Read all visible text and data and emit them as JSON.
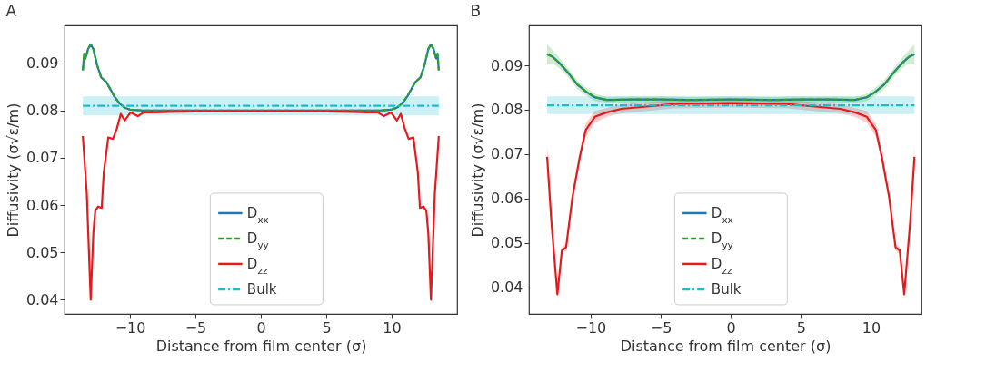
{
  "chart_data": [
    {
      "type": "line",
      "title": "A",
      "xlabel": "Distance from film center (σ)",
      "ylabel": "Diffusivity (σ√ε/m)",
      "xlim": [
        -15,
        15
      ],
      "ylim": [
        0.037,
        0.098
      ],
      "xticks": [
        -10,
        -5,
        0,
        5,
        10
      ],
      "yticks": [
        0.04,
        0.05,
        0.06,
        0.07,
        0.08,
        0.09
      ],
      "grid": false,
      "legend": "bottom",
      "line_style": "solid",
      "series": [
        {
          "name": "D$_{xx}$",
          "color": "#1f77b4",
          "x": [
            -13.6,
            -13.5,
            -13.4,
            -13.2,
            -13.0,
            -12.8,
            -12.5,
            -12.2,
            -11.8,
            -11.5,
            -11.2,
            -10.8,
            -10.4,
            -10,
            -9,
            -7,
            -5,
            -3,
            0,
            3,
            5,
            7,
            9,
            10,
            10.4,
            10.8,
            11.2,
            11.5,
            11.8,
            12.2,
            12.5,
            12.8,
            13.0,
            13.2,
            13.4,
            13.5,
            13.6
          ],
          "values": [
            0.0885,
            0.092,
            0.091,
            0.093,
            0.094,
            0.093,
            0.0895,
            0.087,
            0.086,
            0.0845,
            0.083,
            0.0815,
            0.0806,
            0.0802,
            0.08,
            0.08,
            0.08,
            0.08,
            0.08,
            0.08,
            0.08,
            0.08,
            0.08,
            0.0802,
            0.0806,
            0.0815,
            0.083,
            0.0845,
            0.086,
            0.087,
            0.0895,
            0.093,
            0.094,
            0.093,
            0.091,
            0.092,
            0.0885
          ]
        },
        {
          "name": "D$_{yy}$",
          "color": "#2ca02c",
          "line_style": "dashed",
          "x": [
            -13.6,
            -13.5,
            -13.4,
            -13.2,
            -13.0,
            -12.8,
            -12.5,
            -12.2,
            -11.8,
            -11.5,
            -11.2,
            -10.8,
            -10.4,
            -10,
            -9,
            -7,
            -5,
            -3,
            0,
            3,
            5,
            7,
            9,
            10,
            10.4,
            10.8,
            11.2,
            11.5,
            11.8,
            12.2,
            12.5,
            12.8,
            13.0,
            13.2,
            13.4,
            13.5,
            13.6
          ],
          "values": [
            0.0885,
            0.092,
            0.091,
            0.093,
            0.094,
            0.093,
            0.0895,
            0.087,
            0.086,
            0.0845,
            0.083,
            0.0815,
            0.0806,
            0.0802,
            0.08,
            0.08,
            0.08,
            0.08,
            0.08,
            0.08,
            0.08,
            0.08,
            0.08,
            0.0802,
            0.0806,
            0.0815,
            0.083,
            0.0845,
            0.086,
            0.087,
            0.0895,
            0.093,
            0.094,
            0.093,
            0.091,
            0.092,
            0.0885
          ]
        },
        {
          "name": "D$_{zz}$",
          "color": "#e8191c",
          "x": [
            -13.6,
            -13.3,
            -13.0,
            -12.8,
            -12.65,
            -12.43,
            -12.16,
            -12.0,
            -11.66,
            -11.3,
            -11.0,
            -10.7,
            -10.4,
            -9.95,
            -9.4,
            -8.94,
            -8.05,
            -7,
            -5,
            0,
            5,
            7,
            8.05,
            8.94,
            9.4,
            9.95,
            10.4,
            10.7,
            11.0,
            11.3,
            11.66,
            12.0,
            12.16,
            12.43,
            12.65,
            12.8,
            13.0,
            13.3,
            13.6
          ],
          "values": [
            0.0746,
            0.0625,
            0.04,
            0.054,
            0.0588,
            0.0597,
            0.0594,
            0.0669,
            0.0743,
            0.074,
            0.0762,
            0.0793,
            0.0779,
            0.0796,
            0.0788,
            0.0796,
            0.0796,
            0.0797,
            0.0798,
            0.0798,
            0.0798,
            0.0797,
            0.0796,
            0.0796,
            0.0788,
            0.0796,
            0.0779,
            0.0793,
            0.0762,
            0.074,
            0.0743,
            0.0669,
            0.0594,
            0.0597,
            0.0588,
            0.054,
            0.04,
            0.0625,
            0.0746
          ]
        },
        {
          "name": "Bulk",
          "color": "#17becf",
          "line_style": "dashdot",
          "x": [
            -13.6,
            13.6
          ],
          "values": [
            0.081,
            0.081
          ],
          "lower": [
            0.079,
            0.079
          ],
          "upper": [
            0.083,
            0.083
          ]
        }
      ]
    },
    {
      "type": "line",
      "title": "B",
      "xlabel": "Distance from film center (σ)",
      "ylabel": "Diffusivity (σ√ε/m)",
      "xlim": [
        -14.4,
        13.6
      ],
      "ylim": [
        0.034,
        0.099
      ],
      "xticks": [
        -10,
        -5,
        0,
        5,
        10
      ],
      "yticks": [
        0.04,
        0.05,
        0.06,
        0.07,
        0.08,
        0.09
      ],
      "grid": false,
      "legend": "bottom",
      "line_style": "solid",
      "series": [
        {
          "name": "D$_{xx}$",
          "color": "#1f77b4",
          "x": [
            -13.1,
            -12.7,
            -12.25,
            -11.6,
            -10.95,
            -10.3,
            -9.7,
            -8.85,
            -7,
            -5,
            -3,
            0,
            3,
            5,
            7,
            8.85,
            9.7,
            10.3,
            10.95,
            11.6,
            12.25,
            12.7,
            13.1
          ],
          "values": [
            0.0925,
            0.0919,
            0.0906,
            0.0883,
            0.0857,
            0.084,
            0.0828,
            0.0822,
            0.0823,
            0.0823,
            0.0822,
            0.0823,
            0.0822,
            0.0823,
            0.0823,
            0.0822,
            0.0828,
            0.084,
            0.0857,
            0.0883,
            0.0906,
            0.0919,
            0.0925
          ]
        },
        {
          "name": "D$_{yy}$",
          "color": "#2ca02c",
          "line_style": "dashed",
          "x": [
            -13.1,
            -12.7,
            -12.25,
            -11.6,
            -10.95,
            -10.3,
            -9.7,
            -8.85,
            -7,
            -5,
            -3,
            0,
            3,
            5,
            7,
            8.85,
            9.7,
            10.3,
            10.95,
            11.6,
            12.25,
            12.7,
            13.1
          ],
          "values": [
            0.0925,
            0.0919,
            0.0906,
            0.0883,
            0.0857,
            0.084,
            0.0828,
            0.0822,
            0.0823,
            0.0823,
            0.0822,
            0.0823,
            0.0822,
            0.0823,
            0.0823,
            0.0822,
            0.0828,
            0.084,
            0.0857,
            0.0883,
            0.0906,
            0.0919,
            0.0925
          ],
          "lower": [
            0.0903,
            0.0904,
            0.0894,
            0.0873,
            0.0847,
            0.0831,
            0.082,
            0.0815,
            0.0816,
            0.0816,
            0.0815,
            0.0816,
            0.0815,
            0.0816,
            0.0816,
            0.0815,
            0.082,
            0.0831,
            0.0847,
            0.0873,
            0.0894,
            0.0904,
            0.0903
          ],
          "upper": [
            0.0947,
            0.0934,
            0.0918,
            0.0893,
            0.0867,
            0.0849,
            0.0836,
            0.0829,
            0.083,
            0.083,
            0.0829,
            0.083,
            0.0829,
            0.083,
            0.083,
            0.0829,
            0.0836,
            0.0849,
            0.0867,
            0.0893,
            0.0918,
            0.0934,
            0.0947
          ]
        },
        {
          "name": "D$_{zz}$",
          "color": "#e8191c",
          "x": [
            -13.1,
            -12.8,
            -12.37,
            -12.05,
            -11.75,
            -11.3,
            -10.77,
            -10.35,
            -9.7,
            -8.85,
            -7.8,
            -6,
            -4,
            0,
            4,
            6,
            7.8,
            8.85,
            9.7,
            10.35,
            10.77,
            11.3,
            11.75,
            12.05,
            12.37,
            12.8,
            13.1
          ],
          "values": [
            0.0694,
            0.0549,
            0.0384,
            0.0483,
            0.049,
            0.0602,
            0.0694,
            0.0754,
            0.0784,
            0.0794,
            0.0802,
            0.0807,
            0.0813,
            0.0815,
            0.0813,
            0.0807,
            0.0802,
            0.0794,
            0.0784,
            0.0754,
            0.0694,
            0.0602,
            0.049,
            0.0483,
            0.0384,
            0.0549,
            0.0694
          ],
          "lower": [
            0.0669,
            0.0539,
            0.0379,
            0.0475,
            0.0482,
            0.0592,
            0.0682,
            0.0739,
            0.0771,
            0.0784,
            0.0792,
            0.0797,
            0.0803,
            0.0805,
            0.0803,
            0.0797,
            0.0792,
            0.0784,
            0.0771,
            0.0739,
            0.0682,
            0.0592,
            0.0482,
            0.0475,
            0.0379,
            0.0539,
            0.0669
          ],
          "upper": [
            0.0719,
            0.0559,
            0.0389,
            0.0491,
            0.0498,
            0.0612,
            0.0706,
            0.0769,
            0.0797,
            0.0804,
            0.0812,
            0.0817,
            0.0823,
            0.0825,
            0.0823,
            0.0817,
            0.0812,
            0.0804,
            0.0797,
            0.0769,
            0.0706,
            0.0612,
            0.0498,
            0.0491,
            0.0389,
            0.0559,
            0.0719
          ]
        },
        {
          "name": "Bulk",
          "color": "#17becf",
          "line_style": "dashdot",
          "x": [
            -13.1,
            13.1
          ],
          "values": [
            0.081,
            0.081
          ],
          "lower": [
            0.079,
            0.079
          ],
          "upper": [
            0.083,
            0.083
          ]
        }
      ]
    }
  ]
}
